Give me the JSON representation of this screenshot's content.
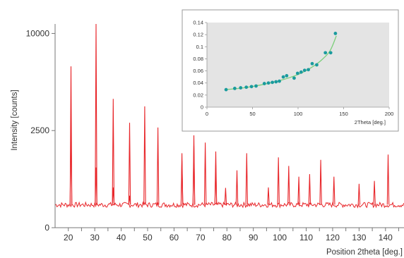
{
  "chart_data": [
    {
      "type": "line",
      "xlabel": "Position 2theta [deg.]",
      "ylabel": "Intensity [counts]",
      "xlim": [
        15,
        147
      ],
      "ylim": [
        0,
        11000
      ],
      "y_axis_scale": "sqrt",
      "y_ticks": [
        0,
        2500,
        10000
      ],
      "x_ticks": [
        20,
        25,
        30,
        35,
        40,
        45,
        50,
        55,
        60,
        65,
        70,
        75,
        80,
        85,
        90,
        95,
        100,
        105,
        110,
        115,
        120,
        125,
        130,
        135,
        140,
        145
      ],
      "x_tick_labels": [
        "20",
        "30",
        "40",
        "50",
        "60",
        "70",
        "80",
        "90",
        "100",
        "110",
        "120",
        "130",
        "140"
      ],
      "x_tick_label_values": [
        20,
        30,
        40,
        50,
        60,
        70,
        80,
        90,
        100,
        110,
        120,
        130,
        140
      ],
      "baseline_counts": 140,
      "line_color": "#e8262a",
      "peaks": [
        {
          "x": 21.0,
          "y": 6900
        },
        {
          "x": 21.0,
          "y": 3100
        },
        {
          "x": 30.5,
          "y": 11000
        },
        {
          "x": 30.5,
          "y": 960
        },
        {
          "x": 37.0,
          "y": 4400
        },
        {
          "x": 37.0,
          "y": 430
        },
        {
          "x": 43.2,
          "y": 2920
        },
        {
          "x": 43.2,
          "y": 270
        },
        {
          "x": 48.9,
          "y": 3900
        },
        {
          "x": 53.9,
          "y": 2660
        },
        {
          "x": 63.0,
          "y": 1470
        },
        {
          "x": 63.0,
          "y": 1180
        },
        {
          "x": 67.5,
          "y": 2260
        },
        {
          "x": 67.5,
          "y": 1780
        },
        {
          "x": 71.8,
          "y": 1920
        },
        {
          "x": 75.8,
          "y": 1540
        },
        {
          "x": 75.8,
          "y": 1050
        },
        {
          "x": 79.5,
          "y": 420
        },
        {
          "x": 83.8,
          "y": 870
        },
        {
          "x": 87.5,
          "y": 1470
        },
        {
          "x": 95.7,
          "y": 430
        },
        {
          "x": 99.5,
          "y": 1310
        },
        {
          "x": 103.4,
          "y": 1010
        },
        {
          "x": 107.2,
          "y": 690
        },
        {
          "x": 111.3,
          "y": 760
        },
        {
          "x": 115.5,
          "y": 1220
        },
        {
          "x": 120.5,
          "y": 690
        },
        {
          "x": 130.0,
          "y": 510
        },
        {
          "x": 135.8,
          "y": 580
        },
        {
          "x": 141.0,
          "y": 1420
        }
      ]
    },
    {
      "type": "scatter",
      "xlabel": "2Theta [deg.]",
      "ylabel": "",
      "xlim": [
        0,
        200
      ],
      "ylim": [
        0,
        0.14
      ],
      "x_ticks": [
        0,
        50,
        100,
        150,
        200
      ],
      "y_ticks": [
        0,
        0.02,
        0.04,
        0.06,
        0.08,
        0.1,
        0.12,
        0.14
      ],
      "x_tick_labels": [
        "0",
        "50",
        "100",
        "150",
        "200"
      ],
      "y_tick_labels": [
        "0",
        "0.02",
        "0.04",
        "0.06",
        "0.08",
        "0.1",
        "0.12",
        "0.14"
      ],
      "background": "#e4e4e4",
      "marker_color": "#1a9b9e",
      "fit_line_color": "#7ccf7a",
      "points": [
        {
          "x": 21,
          "y": 0.029
        },
        {
          "x": 30.5,
          "y": 0.031
        },
        {
          "x": 37,
          "y": 0.032
        },
        {
          "x": 43.2,
          "y": 0.033
        },
        {
          "x": 48.9,
          "y": 0.034
        },
        {
          "x": 53.9,
          "y": 0.035
        },
        {
          "x": 63,
          "y": 0.039
        },
        {
          "x": 67.5,
          "y": 0.04
        },
        {
          "x": 71.8,
          "y": 0.041
        },
        {
          "x": 75.8,
          "y": 0.042
        },
        {
          "x": 79.5,
          "y": 0.043
        },
        {
          "x": 83.8,
          "y": 0.05
        },
        {
          "x": 87.5,
          "y": 0.052
        },
        {
          "x": 95.7,
          "y": 0.048
        },
        {
          "x": 99.5,
          "y": 0.056
        },
        {
          "x": 103.4,
          "y": 0.058
        },
        {
          "x": 107.2,
          "y": 0.061
        },
        {
          "x": 111.3,
          "y": 0.062
        },
        {
          "x": 115.5,
          "y": 0.072
        },
        {
          "x": 120.5,
          "y": 0.07
        },
        {
          "x": 130,
          "y": 0.09
        },
        {
          "x": 135.8,
          "y": 0.09
        },
        {
          "x": 141,
          "y": 0.122
        }
      ],
      "fit_curve": [
        {
          "x": 20,
          "y": 0.029
        },
        {
          "x": 40,
          "y": 0.032
        },
        {
          "x": 60,
          "y": 0.037
        },
        {
          "x": 80,
          "y": 0.044
        },
        {
          "x": 100,
          "y": 0.054
        },
        {
          "x": 115,
          "y": 0.066
        },
        {
          "x": 125,
          "y": 0.077
        },
        {
          "x": 135,
          "y": 0.093
        },
        {
          "x": 142,
          "y": 0.118
        }
      ]
    }
  ]
}
